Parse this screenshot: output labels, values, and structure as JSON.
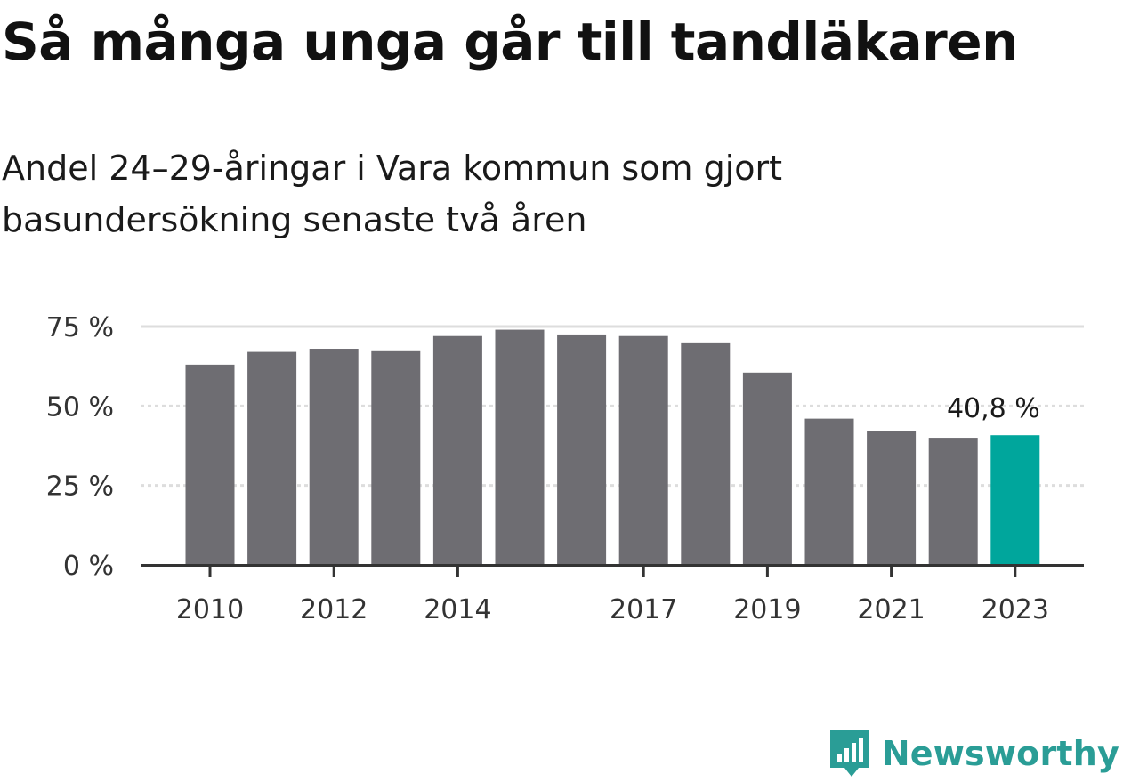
{
  "title": "Så många unga går till tandläkaren",
  "subtitle": "Andel 24–29-åringar i Vara kommun som gjort basundersökning senaste två åren",
  "brand": {
    "name": "Newsworthy",
    "logo_icon": "newsworthy-logo-icon",
    "color": "#2a9d96"
  },
  "chart_data": {
    "type": "bar",
    "categories": [
      "2010",
      "2011",
      "2012",
      "2013",
      "2014",
      "2015",
      "2016",
      "2017",
      "2018",
      "2019",
      "2020",
      "2021",
      "2022",
      "2023"
    ],
    "values": [
      63,
      67,
      68,
      67.5,
      72,
      74,
      72.5,
      72,
      70,
      60.5,
      46,
      42,
      40,
      40.8
    ],
    "x_tick_labels": [
      "2010",
      "2012",
      "2014",
      "2017",
      "2019",
      "2021",
      "2023"
    ],
    "y_ticks": [
      0,
      25,
      50,
      75
    ],
    "y_tick_labels": [
      "0 %",
      "25 %",
      "50 %",
      "75 %"
    ],
    "ylim": [
      0,
      75
    ],
    "grid": true,
    "bar_color": "#6e6d72",
    "highlight_color": "#00a69c",
    "highlight_index": 13,
    "annotation": "40,8 %"
  }
}
